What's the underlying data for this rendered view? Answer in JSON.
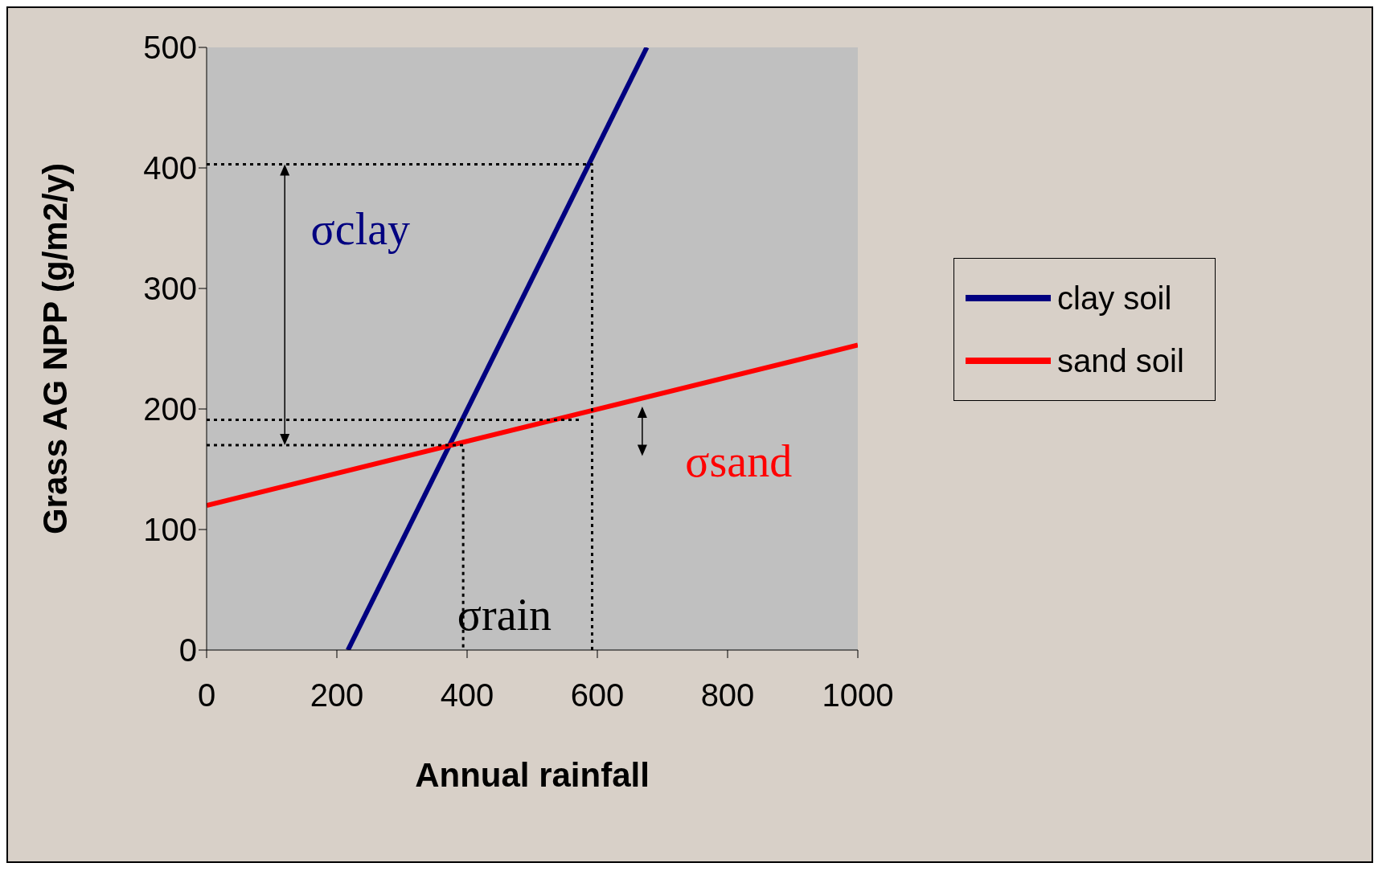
{
  "chart_data": {
    "type": "line",
    "xlabel": "Annual rainfall",
    "ylabel": "Grass AG NPP (g/m2/y)",
    "xlim": [
      0,
      1000
    ],
    "ylim": [
      0,
      500
    ],
    "xticks": [
      0,
      200,
      400,
      600,
      800,
      1000
    ],
    "yticks": [
      0,
      100,
      200,
      300,
      400,
      500
    ],
    "grid": false,
    "legend": "right",
    "marker": "none",
    "series": [
      {
        "name": "clay soil",
        "color": "#000080",
        "x": [
          217,
          676
        ],
        "values": [
          0,
          500
        ]
      },
      {
        "name": "sand soil",
        "color": "#ff0000",
        "x": [
          0,
          1000
        ],
        "values": [
          120,
          253
        ]
      },
      {
        "color": "#000000",
        "line_style": "dotted",
        "x": [
          0,
          592,
          592
        ],
        "values": [
          403,
          403,
          0
        ]
      },
      {
        "color": "#000000",
        "line_style": "dotted",
        "x": [
          0,
          394,
          394
        ],
        "values": [
          170,
          170,
          0
        ]
      },
      {
        "color": "#000000",
        "line_style": "dotted",
        "x": [
          0,
          572
        ],
        "values": [
          191,
          191
        ]
      }
    ],
    "annotations": [
      "σclay",
      "σsand",
      "σrain"
    ]
  }
}
